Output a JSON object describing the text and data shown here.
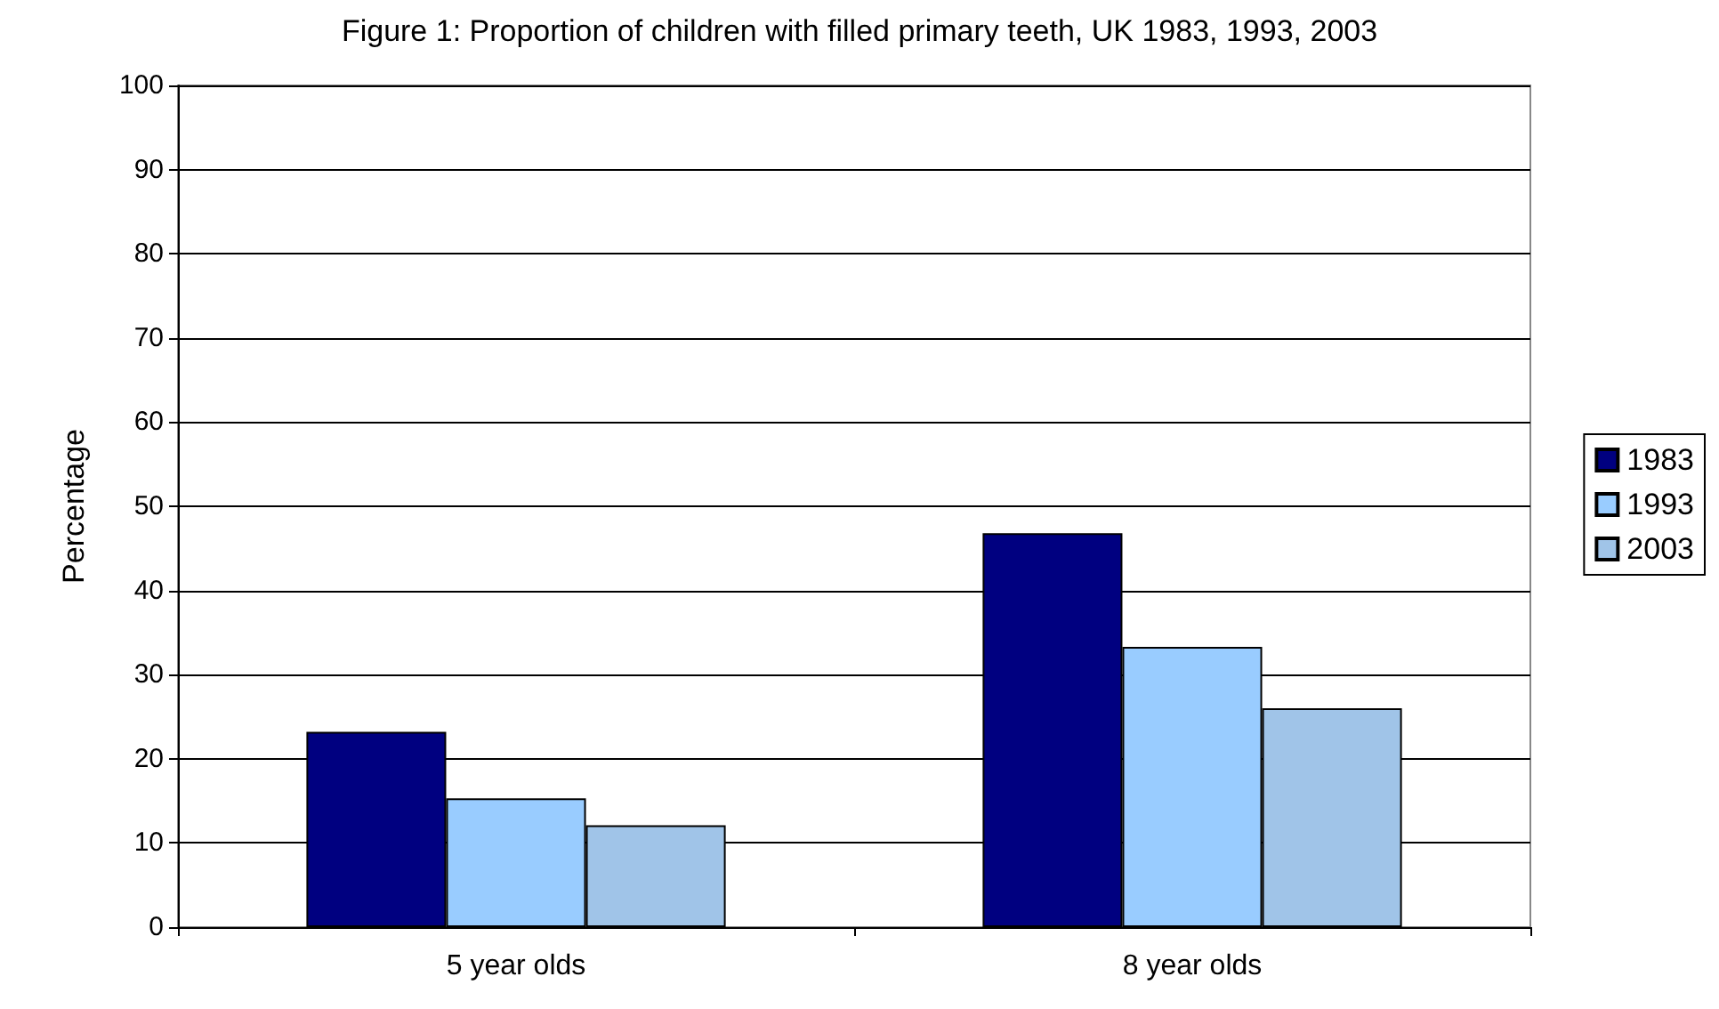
{
  "chart_data": {
    "type": "bar",
    "title": "Figure 1: Proportion of children with filled primary teeth, UK 1983, 1993, 2003",
    "ylabel": "Percentage",
    "categories": [
      "5 year olds",
      "8 year olds"
    ],
    "series": [
      {
        "name": "1983",
        "color": "#000080",
        "values": [
          23.2,
          46.8
        ]
      },
      {
        "name": "1993",
        "color": "#99ccff",
        "values": [
          15.3,
          33.3
        ]
      },
      {
        "name": "2003",
        "color": "#a0c4e8",
        "values": [
          12.1,
          26.0
        ]
      }
    ],
    "ylim": [
      0,
      100
    ],
    "yticks": [
      0,
      10,
      20,
      30,
      40,
      50,
      60,
      70,
      80,
      90,
      100
    ],
    "grid": "y",
    "legend": "right"
  }
}
